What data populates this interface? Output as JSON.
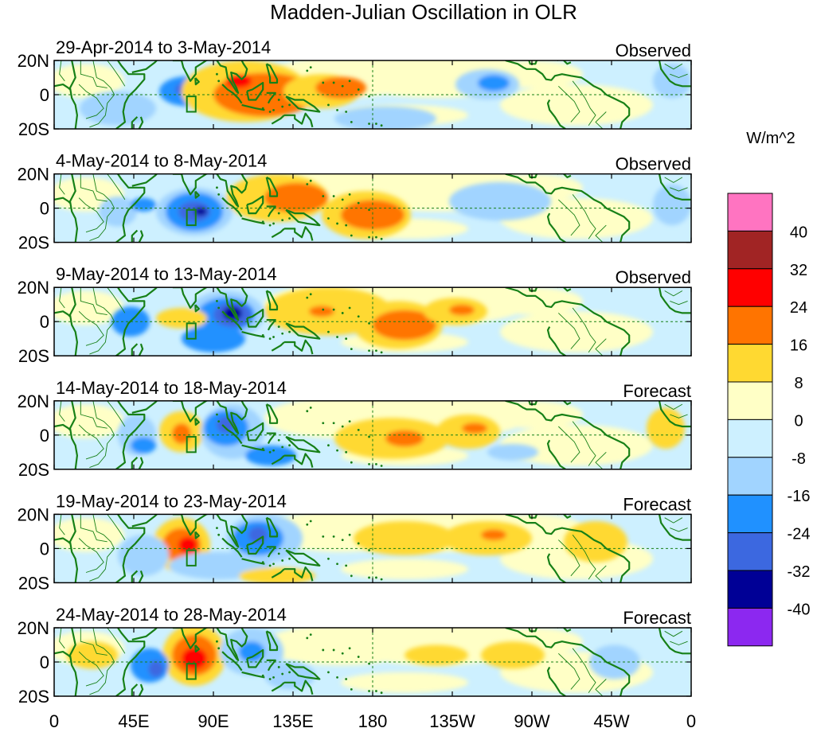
{
  "title": "Madden-Julian Oscillation in OLR",
  "panels": [
    {
      "date_range": "29-Apr-2014 to 3-May-2014",
      "status": "Observed"
    },
    {
      "date_range": "4-May-2014 to 8-May-2014",
      "status": "Observed"
    },
    {
      "date_range": "9-May-2014 to 13-May-2014",
      "status": "Observed"
    },
    {
      "date_range": "14-May-2014 to 18-May-2014",
      "status": "Forecast"
    },
    {
      "date_range": "19-May-2014 to 23-May-2014",
      "status": "Forecast"
    },
    {
      "date_range": "24-May-2014 to 28-May-2014",
      "status": "Forecast"
    }
  ],
  "lat_labels": [
    "20N",
    "0",
    "20S"
  ],
  "lon_labels": [
    "0",
    "45E",
    "90E",
    "135E",
    "180",
    "135W",
    "90W",
    "45W",
    "0"
  ],
  "colorbar": {
    "unit": "W/m^2",
    "labels": [
      "40",
      "32",
      "24",
      "16",
      "8",
      "0",
      "-8",
      "-16",
      "-24",
      "-32",
      "-40"
    ],
    "colors": [
      "#ff74c1",
      "#a12424",
      "#ff0000",
      "#ff7400",
      "#ffd931",
      "#ffffc6",
      "#cdf0ff",
      "#a1d4ff",
      "#2091ff",
      "#3c68e0",
      "#000096",
      "#8c28f0"
    ]
  },
  "map_colors": {
    "land_outline": "#178017",
    "equator_line": "#178017",
    "background": "#cdf0ff"
  }
}
